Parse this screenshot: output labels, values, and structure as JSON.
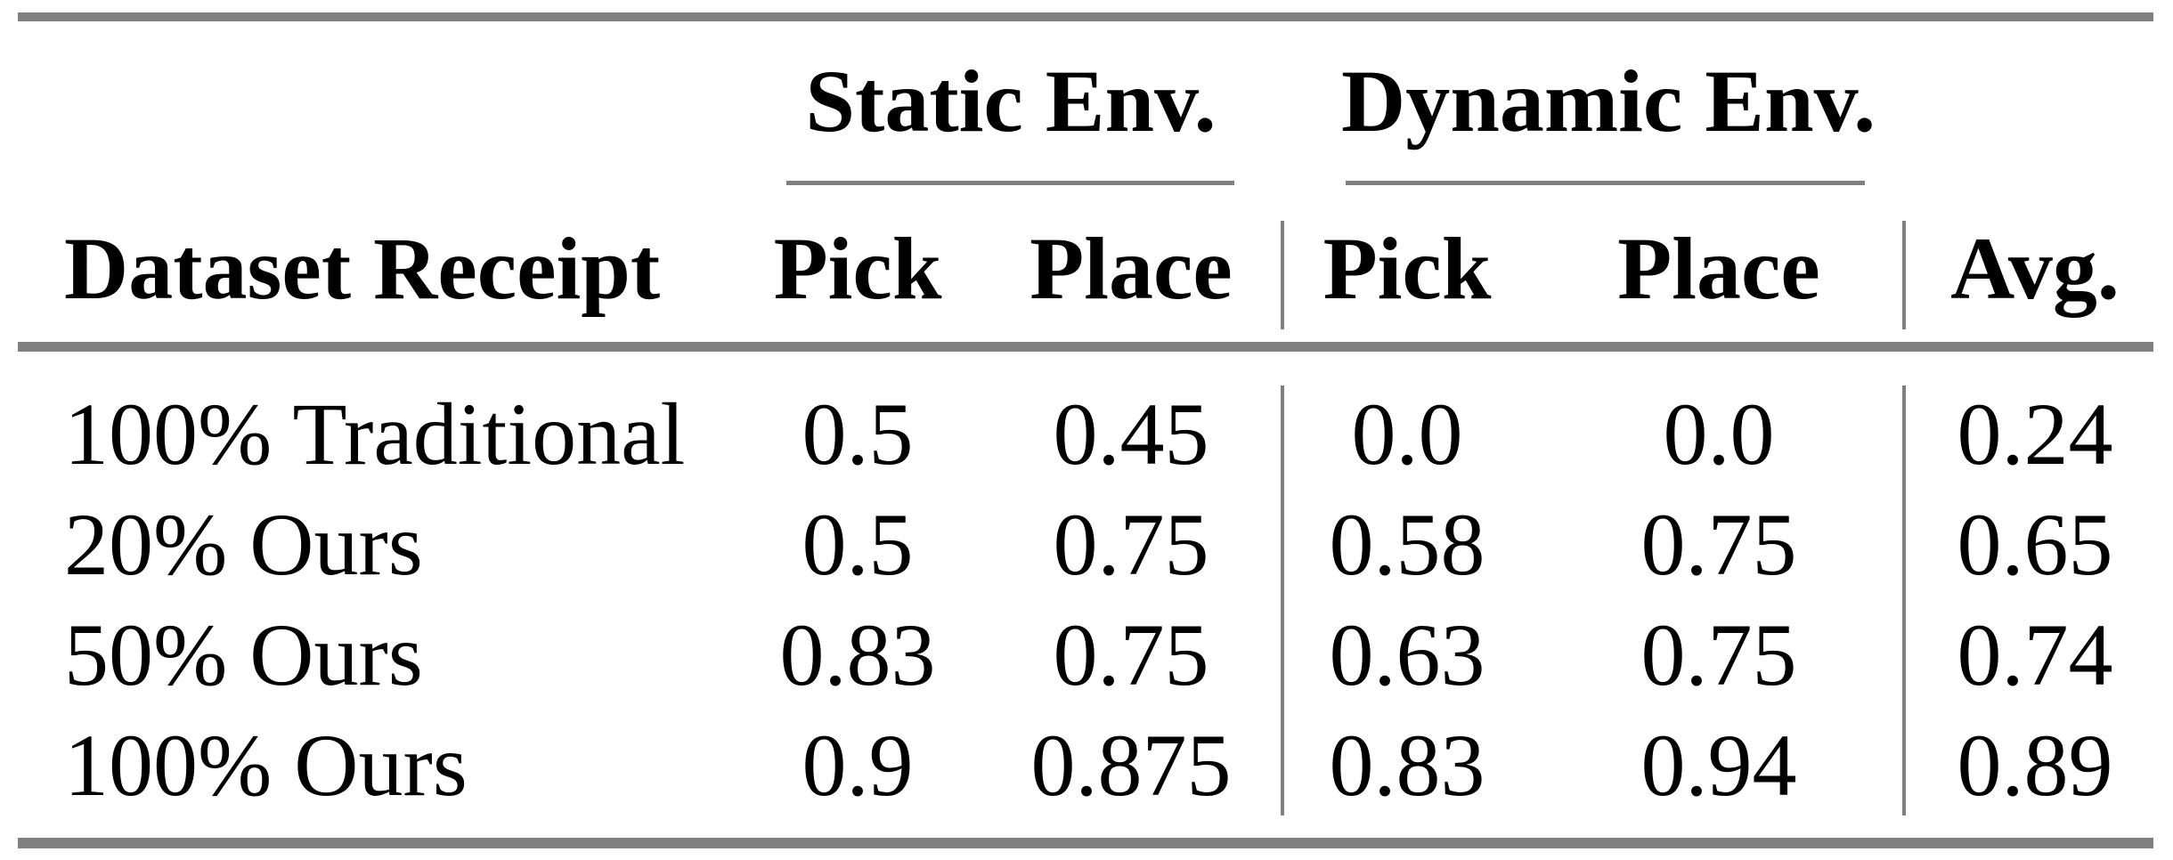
{
  "page": {
    "background_color": "#ffffff",
    "text_color": "#000000",
    "rule_color": "#808080"
  },
  "table": {
    "group_header": {
      "static": "Static Env.",
      "dynamic": "Dynamic Env."
    },
    "columns": {
      "dataset": "Dataset Receipt",
      "static_pick": "Pick",
      "static_place": "Place",
      "dynamic_pick": "Pick",
      "dynamic_place": "Place",
      "avg": "Avg."
    },
    "rows": [
      {
        "dataset": "100% Traditional",
        "static_pick": "0.5",
        "static_place": "0.45",
        "dynamic_pick": "0.0",
        "dynamic_place": "0.0",
        "avg": "0.24"
      },
      {
        "dataset": "20% Ours",
        "static_pick": "0.5",
        "static_place": "0.75",
        "dynamic_pick": "0.58",
        "dynamic_place": "0.75",
        "avg": "0.65"
      },
      {
        "dataset": "50% Ours",
        "static_pick": "0.83",
        "static_place": "0.75",
        "dynamic_pick": "0.63",
        "dynamic_place": "0.75",
        "avg": "0.74"
      },
      {
        "dataset": "100% Ours",
        "static_pick": "0.9",
        "static_place": "0.875",
        "dynamic_pick": "0.83",
        "dynamic_place": "0.94",
        "avg": "0.89"
      }
    ]
  }
}
